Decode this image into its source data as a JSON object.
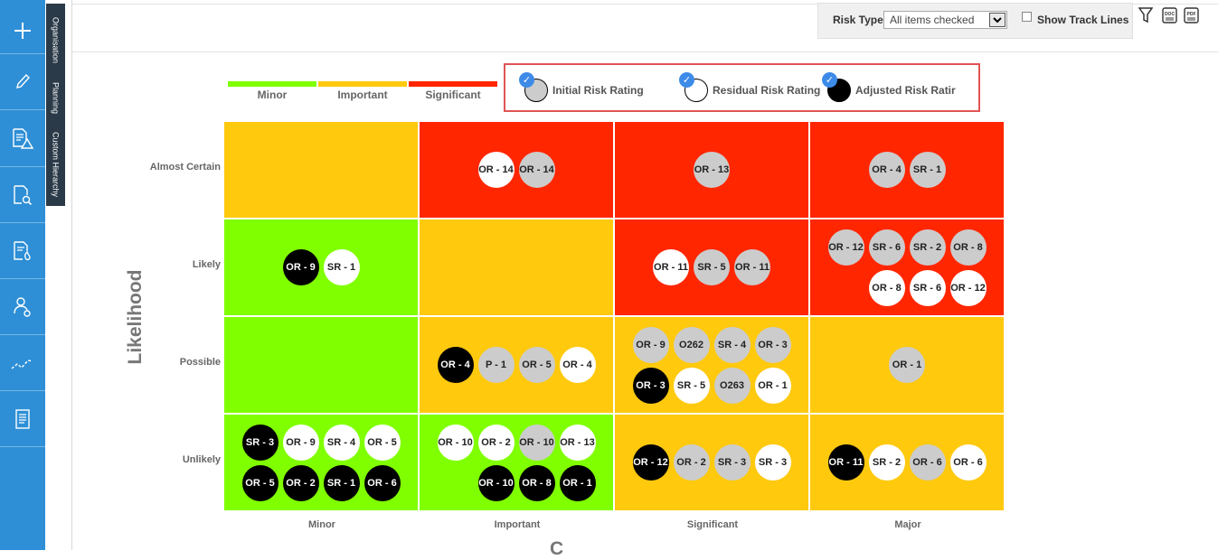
{
  "sidebar": {
    "items": [
      {
        "icon": "plus-icon",
        "name": "add"
      },
      {
        "icon": "pencil-icon",
        "name": "edit"
      },
      {
        "icon": "document-warning-icon",
        "name": "risk-register"
      },
      {
        "icon": "document-search-icon",
        "name": "review"
      },
      {
        "icon": "document-fire-icon",
        "name": "incidents"
      },
      {
        "icon": "user-settings-icon",
        "name": "users"
      },
      {
        "icon": "trend-line-icon",
        "name": "trends"
      },
      {
        "icon": "report-icon",
        "name": "reports"
      }
    ]
  },
  "vertical_tabs": [
    "Organisation",
    "Planning",
    "Custom Hierarchy"
  ],
  "toolbar": {
    "risk_type_label": "Risk Type",
    "risk_type_value": "All items checked",
    "show_track_lines_label": "Show Track Lines",
    "show_track_lines_checked": false,
    "icons": [
      "filter-icon",
      "doc-export-icon",
      "pdf-export-icon"
    ]
  },
  "severity_legend": [
    {
      "label": "Minor",
      "color": "#80ff00"
    },
    {
      "label": "Important",
      "color": "#ffc90e"
    },
    {
      "label": "Significant",
      "color": "#ff2600"
    }
  ],
  "rating_legend": [
    {
      "label": "Initial Risk Rating",
      "fill": "#cccccc",
      "checked": true
    },
    {
      "label": "Residual Risk Rating",
      "fill": "#ffffff",
      "checked": true
    },
    {
      "label": "Adjusted Risk Ratir",
      "fill": "#000000",
      "checked": true
    }
  ],
  "axes": {
    "y_title": "Likelihood",
    "x_title": "C",
    "rows": [
      "Almost Certain",
      "Likely",
      "Possible",
      "Unlikely"
    ],
    "cols": [
      "Minor",
      "Important",
      "Significant",
      "Major"
    ]
  },
  "colors": {
    "minor": "#80ff00",
    "important": "#ffc90e",
    "significant": "#ff2600",
    "accent": "#2e8fd6"
  },
  "cells": [
    {
      "row": 0,
      "col": 0,
      "level": "important",
      "bubbles": []
    },
    {
      "row": 0,
      "col": 1,
      "level": "significant",
      "bubbles": [
        {
          "label": "OR - 14",
          "type": "residual"
        },
        {
          "label": "OR - 14",
          "type": "initial"
        }
      ]
    },
    {
      "row": 0,
      "col": 2,
      "level": "significant",
      "bubbles": [
        {
          "label": "OR - 13",
          "type": "initial"
        }
      ]
    },
    {
      "row": 0,
      "col": 3,
      "level": "significant",
      "bubbles": [
        {
          "label": "OR - 4",
          "type": "initial"
        },
        {
          "label": "SR - 1",
          "type": "initial"
        }
      ]
    },
    {
      "row": 1,
      "col": 0,
      "level": "minor",
      "bubbles": [
        {
          "label": "OR - 9",
          "type": "adjusted"
        },
        {
          "label": "SR - 1",
          "type": "residual"
        }
      ]
    },
    {
      "row": 1,
      "col": 1,
      "level": "important",
      "bubbles": []
    },
    {
      "row": 1,
      "col": 2,
      "level": "significant",
      "bubbles": [
        {
          "label": "OR - 11",
          "type": "residual"
        },
        {
          "label": "SR - 5",
          "type": "initial"
        },
        {
          "label": "OR - 11",
          "type": "initial"
        }
      ]
    },
    {
      "row": 1,
      "col": 3,
      "level": "significant",
      "bubbles": [
        {
          "label": "OR - 12",
          "type": "initial"
        },
        {
          "label": "SR - 6",
          "type": "initial"
        },
        {
          "label": "SR - 2",
          "type": "initial"
        },
        {
          "label": "OR - 8",
          "type": "initial"
        },
        {
          "label": "OR - 8",
          "type": "residual"
        },
        {
          "label": "SR - 6",
          "type": "residual"
        },
        {
          "label": "OR - 12",
          "type": "residual"
        }
      ]
    },
    {
      "row": 2,
      "col": 0,
      "level": "minor",
      "bubbles": []
    },
    {
      "row": 2,
      "col": 1,
      "level": "important",
      "bubbles": [
        {
          "label": "OR - 4",
          "type": "adjusted"
        },
        {
          "label": "P - 1",
          "type": "initial"
        },
        {
          "label": "OR - 5",
          "type": "initial"
        },
        {
          "label": "OR - 4",
          "type": "residual"
        }
      ]
    },
    {
      "row": 2,
      "col": 2,
      "level": "important",
      "bubbles": [
        {
          "label": "OR - 9",
          "type": "initial"
        },
        {
          "label": "O262",
          "type": "initial"
        },
        {
          "label": "SR - 4",
          "type": "initial"
        },
        {
          "label": "OR - 3",
          "type": "initial"
        },
        {
          "label": "OR - 3",
          "type": "adjusted"
        },
        {
          "label": "SR - 5",
          "type": "residual"
        },
        {
          "label": "O263",
          "type": "initial"
        },
        {
          "label": "OR - 1",
          "type": "residual"
        }
      ]
    },
    {
      "row": 2,
      "col": 3,
      "level": "important",
      "bubbles": [
        {
          "label": "OR - 1",
          "type": "initial"
        }
      ]
    },
    {
      "row": 3,
      "col": 0,
      "level": "minor",
      "bubbles": [
        {
          "label": "SR - 3",
          "type": "adjusted"
        },
        {
          "label": "OR - 9",
          "type": "residual"
        },
        {
          "label": "SR - 4",
          "type": "residual"
        },
        {
          "label": "OR - 5",
          "type": "residual"
        },
        {
          "label": "OR - 5",
          "type": "adjusted"
        },
        {
          "label": "OR - 2",
          "type": "adjusted"
        },
        {
          "label": "SR - 1",
          "type": "adjusted"
        },
        {
          "label": "OR - 6",
          "type": "adjusted"
        }
      ]
    },
    {
      "row": 3,
      "col": 1,
      "level": "minor",
      "bubbles": [
        {
          "label": "OR - 10",
          "type": "residual"
        },
        {
          "label": "OR - 2",
          "type": "residual"
        },
        {
          "label": "OR - 10",
          "type": "initial"
        },
        {
          "label": "OR - 13",
          "type": "residual"
        },
        {
          "label": "OR - 10",
          "type": "adjusted"
        },
        {
          "label": "OR - 8",
          "type": "adjusted"
        },
        {
          "label": "OR - 1",
          "type": "adjusted"
        }
      ]
    },
    {
      "row": 3,
      "col": 2,
      "level": "important",
      "bubbles": [
        {
          "label": "OR - 12",
          "type": "adjusted"
        },
        {
          "label": "OR - 2",
          "type": "initial"
        },
        {
          "label": "SR - 3",
          "type": "initial"
        },
        {
          "label": "SR - 3",
          "type": "residual"
        }
      ]
    },
    {
      "row": 3,
      "col": 3,
      "level": "important",
      "bubbles": [
        {
          "label": "OR - 11",
          "type": "adjusted"
        },
        {
          "label": "SR - 2",
          "type": "residual"
        },
        {
          "label": "OR - 6",
          "type": "initial"
        },
        {
          "label": "OR - 6",
          "type": "residual"
        }
      ]
    }
  ]
}
